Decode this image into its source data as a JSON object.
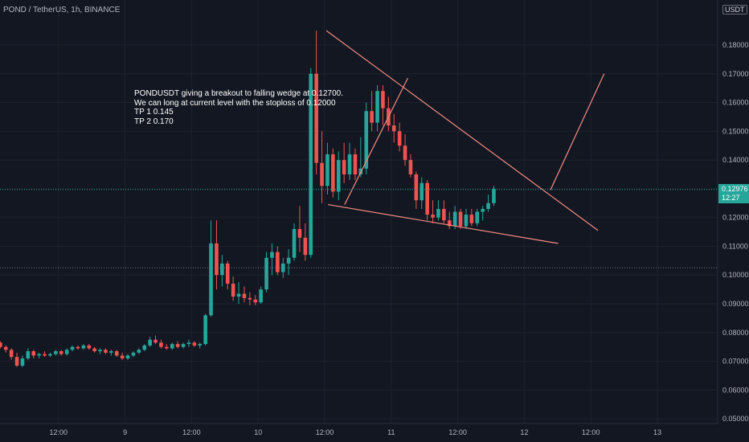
{
  "header": {
    "title": "POND / TetherUS, 1h, BINANCE",
    "currency": "USDT"
  },
  "annotation": {
    "lines": [
      "PONDUSDT giving a breakout to falling wedge at 0.12700.",
      "We can long at current level with the stoploss of 0.12000",
      "TP 1 0.145",
      "TP 2 0.170"
    ]
  },
  "last_price": {
    "value": "0.12976",
    "countdown": "12:27"
  },
  "colors": {
    "background": "#131722",
    "up": "#26a69a",
    "down": "#ef5350",
    "trendline": "#f28b82",
    "grid": "#1e222d"
  },
  "chart_data": {
    "type": "candlestick",
    "y_axis": {
      "ticks": [
        "0.18000",
        "0.17000",
        "0.16000",
        "0.15000",
        "0.14000",
        "0.13000",
        "0.12000",
        "0.11000",
        "0.10000",
        "0.09000",
        "0.08000",
        "0.07000",
        "0.06000",
        "0.05000"
      ],
      "range": [
        0.05,
        0.19
      ],
      "position": "right"
    },
    "x_axis": {
      "ticks": [
        "12:00",
        "9",
        "12:00",
        "10",
        "12:00",
        "11",
        "12:00",
        "12",
        "12:00",
        "13"
      ],
      "tick_hours": [
        12,
        24,
        36,
        48,
        60,
        72,
        84,
        96,
        108,
        120
      ]
    },
    "grid": true,
    "dotted_reference_level": 0.1025,
    "candles": [
      [
        0.0765,
        0.077,
        0.0745,
        0.075
      ],
      [
        0.075,
        0.0755,
        0.073,
        0.074
      ],
      [
        0.074,
        0.0745,
        0.0705,
        0.0715
      ],
      [
        0.0715,
        0.073,
        0.068,
        0.0685
      ],
      [
        0.0685,
        0.072,
        0.068,
        0.071
      ],
      [
        0.071,
        0.0745,
        0.0705,
        0.0735
      ],
      [
        0.0735,
        0.074,
        0.071,
        0.072
      ],
      [
        0.072,
        0.073,
        0.071,
        0.0725
      ],
      [
        0.0725,
        0.0735,
        0.0715,
        0.072
      ],
      [
        0.072,
        0.073,
        0.0715,
        0.0725
      ],
      [
        0.0725,
        0.074,
        0.072,
        0.0735
      ],
      [
        0.0735,
        0.074,
        0.072,
        0.0725
      ],
      [
        0.0725,
        0.0745,
        0.072,
        0.074
      ],
      [
        0.074,
        0.0755,
        0.0735,
        0.075
      ],
      [
        0.075,
        0.0755,
        0.074,
        0.0745
      ],
      [
        0.0745,
        0.076,
        0.074,
        0.0755
      ],
      [
        0.0755,
        0.076,
        0.074,
        0.0745
      ],
      [
        0.0745,
        0.075,
        0.073,
        0.0735
      ],
      [
        0.0735,
        0.0745,
        0.0725,
        0.074
      ],
      [
        0.074,
        0.0745,
        0.0725,
        0.073
      ],
      [
        0.073,
        0.074,
        0.072,
        0.0735
      ],
      [
        0.0735,
        0.074,
        0.0715,
        0.072
      ],
      [
        0.072,
        0.073,
        0.0705,
        0.071
      ],
      [
        0.071,
        0.0725,
        0.0705,
        0.072
      ],
      [
        0.072,
        0.0735,
        0.0715,
        0.073
      ],
      [
        0.073,
        0.0745,
        0.0725,
        0.074
      ],
      [
        0.074,
        0.076,
        0.0735,
        0.0755
      ],
      [
        0.0755,
        0.0785,
        0.075,
        0.0775
      ],
      [
        0.0775,
        0.079,
        0.076,
        0.0765
      ],
      [
        0.0765,
        0.0775,
        0.0745,
        0.075
      ],
      [
        0.075,
        0.076,
        0.074,
        0.0745
      ],
      [
        0.0745,
        0.0765,
        0.074,
        0.076
      ],
      [
        0.076,
        0.077,
        0.0745,
        0.075
      ],
      [
        0.075,
        0.0765,
        0.0745,
        0.076
      ],
      [
        0.076,
        0.0775,
        0.075,
        0.0765
      ],
      [
        0.0765,
        0.077,
        0.075,
        0.0755
      ],
      [
        0.0755,
        0.0765,
        0.0745,
        0.076
      ],
      [
        0.076,
        0.0865,
        0.0755,
        0.086
      ],
      [
        0.086,
        0.119,
        0.0855,
        0.111
      ],
      [
        0.111,
        0.119,
        0.095,
        0.1
      ],
      [
        0.1,
        0.107,
        0.096,
        0.104
      ],
      [
        0.104,
        0.105,
        0.095,
        0.097
      ],
      [
        0.097,
        0.0995,
        0.091,
        0.0925
      ],
      [
        0.0925,
        0.0975,
        0.09,
        0.0935
      ],
      [
        0.0935,
        0.096,
        0.0905,
        0.092
      ],
      [
        0.092,
        0.094,
        0.0895,
        0.0915
      ],
      [
        0.0915,
        0.093,
        0.0895,
        0.0905
      ],
      [
        0.0905,
        0.096,
        0.09,
        0.095
      ],
      [
        0.095,
        0.108,
        0.094,
        0.106
      ],
      [
        0.106,
        0.111,
        0.1,
        0.108
      ],
      [
        0.108,
        0.11,
        0.1,
        0.101
      ],
      [
        0.101,
        0.106,
        0.099,
        0.104
      ],
      [
        0.104,
        0.109,
        0.1,
        0.106
      ],
      [
        0.106,
        0.118,
        0.105,
        0.116
      ],
      [
        0.116,
        0.124,
        0.108,
        0.113
      ],
      [
        0.113,
        0.118,
        0.105,
        0.107
      ],
      [
        0.107,
        0.172,
        0.106,
        0.17
      ],
      [
        0.17,
        0.185,
        0.135,
        0.139
      ],
      [
        0.139,
        0.15,
        0.125,
        0.131
      ],
      [
        0.131,
        0.146,
        0.128,
        0.142
      ],
      [
        0.142,
        0.144,
        0.127,
        0.129
      ],
      [
        0.129,
        0.143,
        0.126,
        0.14
      ],
      [
        0.14,
        0.146,
        0.132,
        0.135
      ],
      [
        0.135,
        0.146,
        0.133,
        0.142
      ],
      [
        0.142,
        0.144,
        0.133,
        0.135
      ],
      [
        0.135,
        0.148,
        0.134,
        0.137
      ],
      [
        0.137,
        0.16,
        0.135,
        0.157
      ],
      [
        0.157,
        0.164,
        0.15,
        0.153
      ],
      [
        0.153,
        0.166,
        0.15,
        0.164
      ],
      [
        0.164,
        0.166,
        0.152,
        0.158
      ],
      [
        0.158,
        0.162,
        0.15,
        0.152
      ],
      [
        0.152,
        0.156,
        0.146,
        0.15
      ],
      [
        0.15,
        0.153,
        0.143,
        0.145
      ],
      [
        0.145,
        0.149,
        0.138,
        0.14
      ],
      [
        0.14,
        0.142,
        0.134,
        0.135
      ],
      [
        0.135,
        0.136,
        0.123,
        0.126
      ],
      [
        0.126,
        0.134,
        0.123,
        0.132
      ],
      [
        0.132,
        0.133,
        0.119,
        0.121
      ],
      [
        0.121,
        0.126,
        0.118,
        0.12
      ],
      [
        0.12,
        0.126,
        0.119,
        0.123
      ],
      [
        0.123,
        0.126,
        0.118,
        0.119
      ],
      [
        0.119,
        0.122,
        0.116,
        0.117
      ],
      [
        0.117,
        0.124,
        0.116,
        0.122
      ],
      [
        0.122,
        0.123,
        0.116,
        0.117
      ],
      [
        0.117,
        0.123,
        0.116,
        0.121
      ],
      [
        0.121,
        0.123,
        0.117,
        0.118
      ],
      [
        0.118,
        0.123,
        0.117,
        0.122
      ],
      [
        0.122,
        0.124,
        0.119,
        0.123
      ],
      [
        0.123,
        0.128,
        0.122,
        0.125
      ],
      [
        0.125,
        0.131,
        0.124,
        0.13
      ]
    ],
    "trendlines": [
      {
        "from": [
          60.3,
          0.185
        ],
        "to": [
          109.3,
          0.1155
        ]
      },
      {
        "from": [
          60.6,
          0.1245
        ],
        "to": [
          102.1,
          0.111
        ]
      },
      {
        "from": [
          63.6,
          0.1245
        ],
        "to": [
          75.0,
          0.1685
        ]
      },
      {
        "from": [
          100.7,
          0.1295
        ],
        "to": [
          110.4,
          0.17
        ]
      }
    ]
  }
}
